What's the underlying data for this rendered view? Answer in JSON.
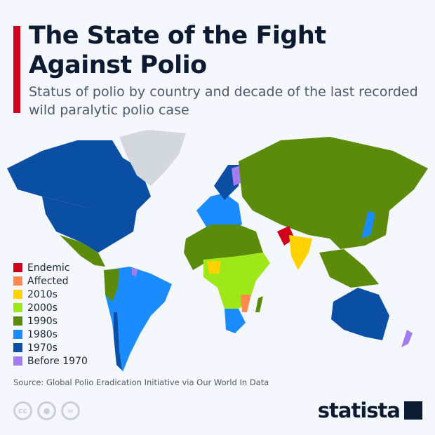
{
  "header": {
    "title": "The State of the Fight Against Polio",
    "subtitle": "Status of polio by country and decade of the last recorded wild paralytic polio case"
  },
  "colors": {
    "accent": "#d0021b",
    "endemic": "#d0021b",
    "affected": "#ff8a4c",
    "2010s": "#ffd200",
    "2000s": "#9ee81a",
    "1990s": "#5c8a0a",
    "1980s": "#1a8cff",
    "1970s": "#0a4fa3",
    "before_1970": "#a57cf0",
    "no_data": "#d2d8de"
  },
  "legend": [
    {
      "label": "Endemic",
      "color": "#d0021b"
    },
    {
      "label": "Affected",
      "color": "#ff8a4c"
    },
    {
      "label": "2010s",
      "color": "#ffd200"
    },
    {
      "label": "2000s",
      "color": "#9ee81a"
    },
    {
      "label": "1990s",
      "color": "#5c8a0a"
    },
    {
      "label": "1980s",
      "color": "#1a8cff"
    },
    {
      "label": "1970s",
      "color": "#0a4fa3"
    },
    {
      "label": "Before 1970",
      "color": "#a57cf0"
    }
  ],
  "source": "Source: Global Polio Eradication Initiative via Our World In Data",
  "license_icons": [
    "cc-icon",
    "by-icon",
    "nd-icon"
  ],
  "brand": "statista"
}
